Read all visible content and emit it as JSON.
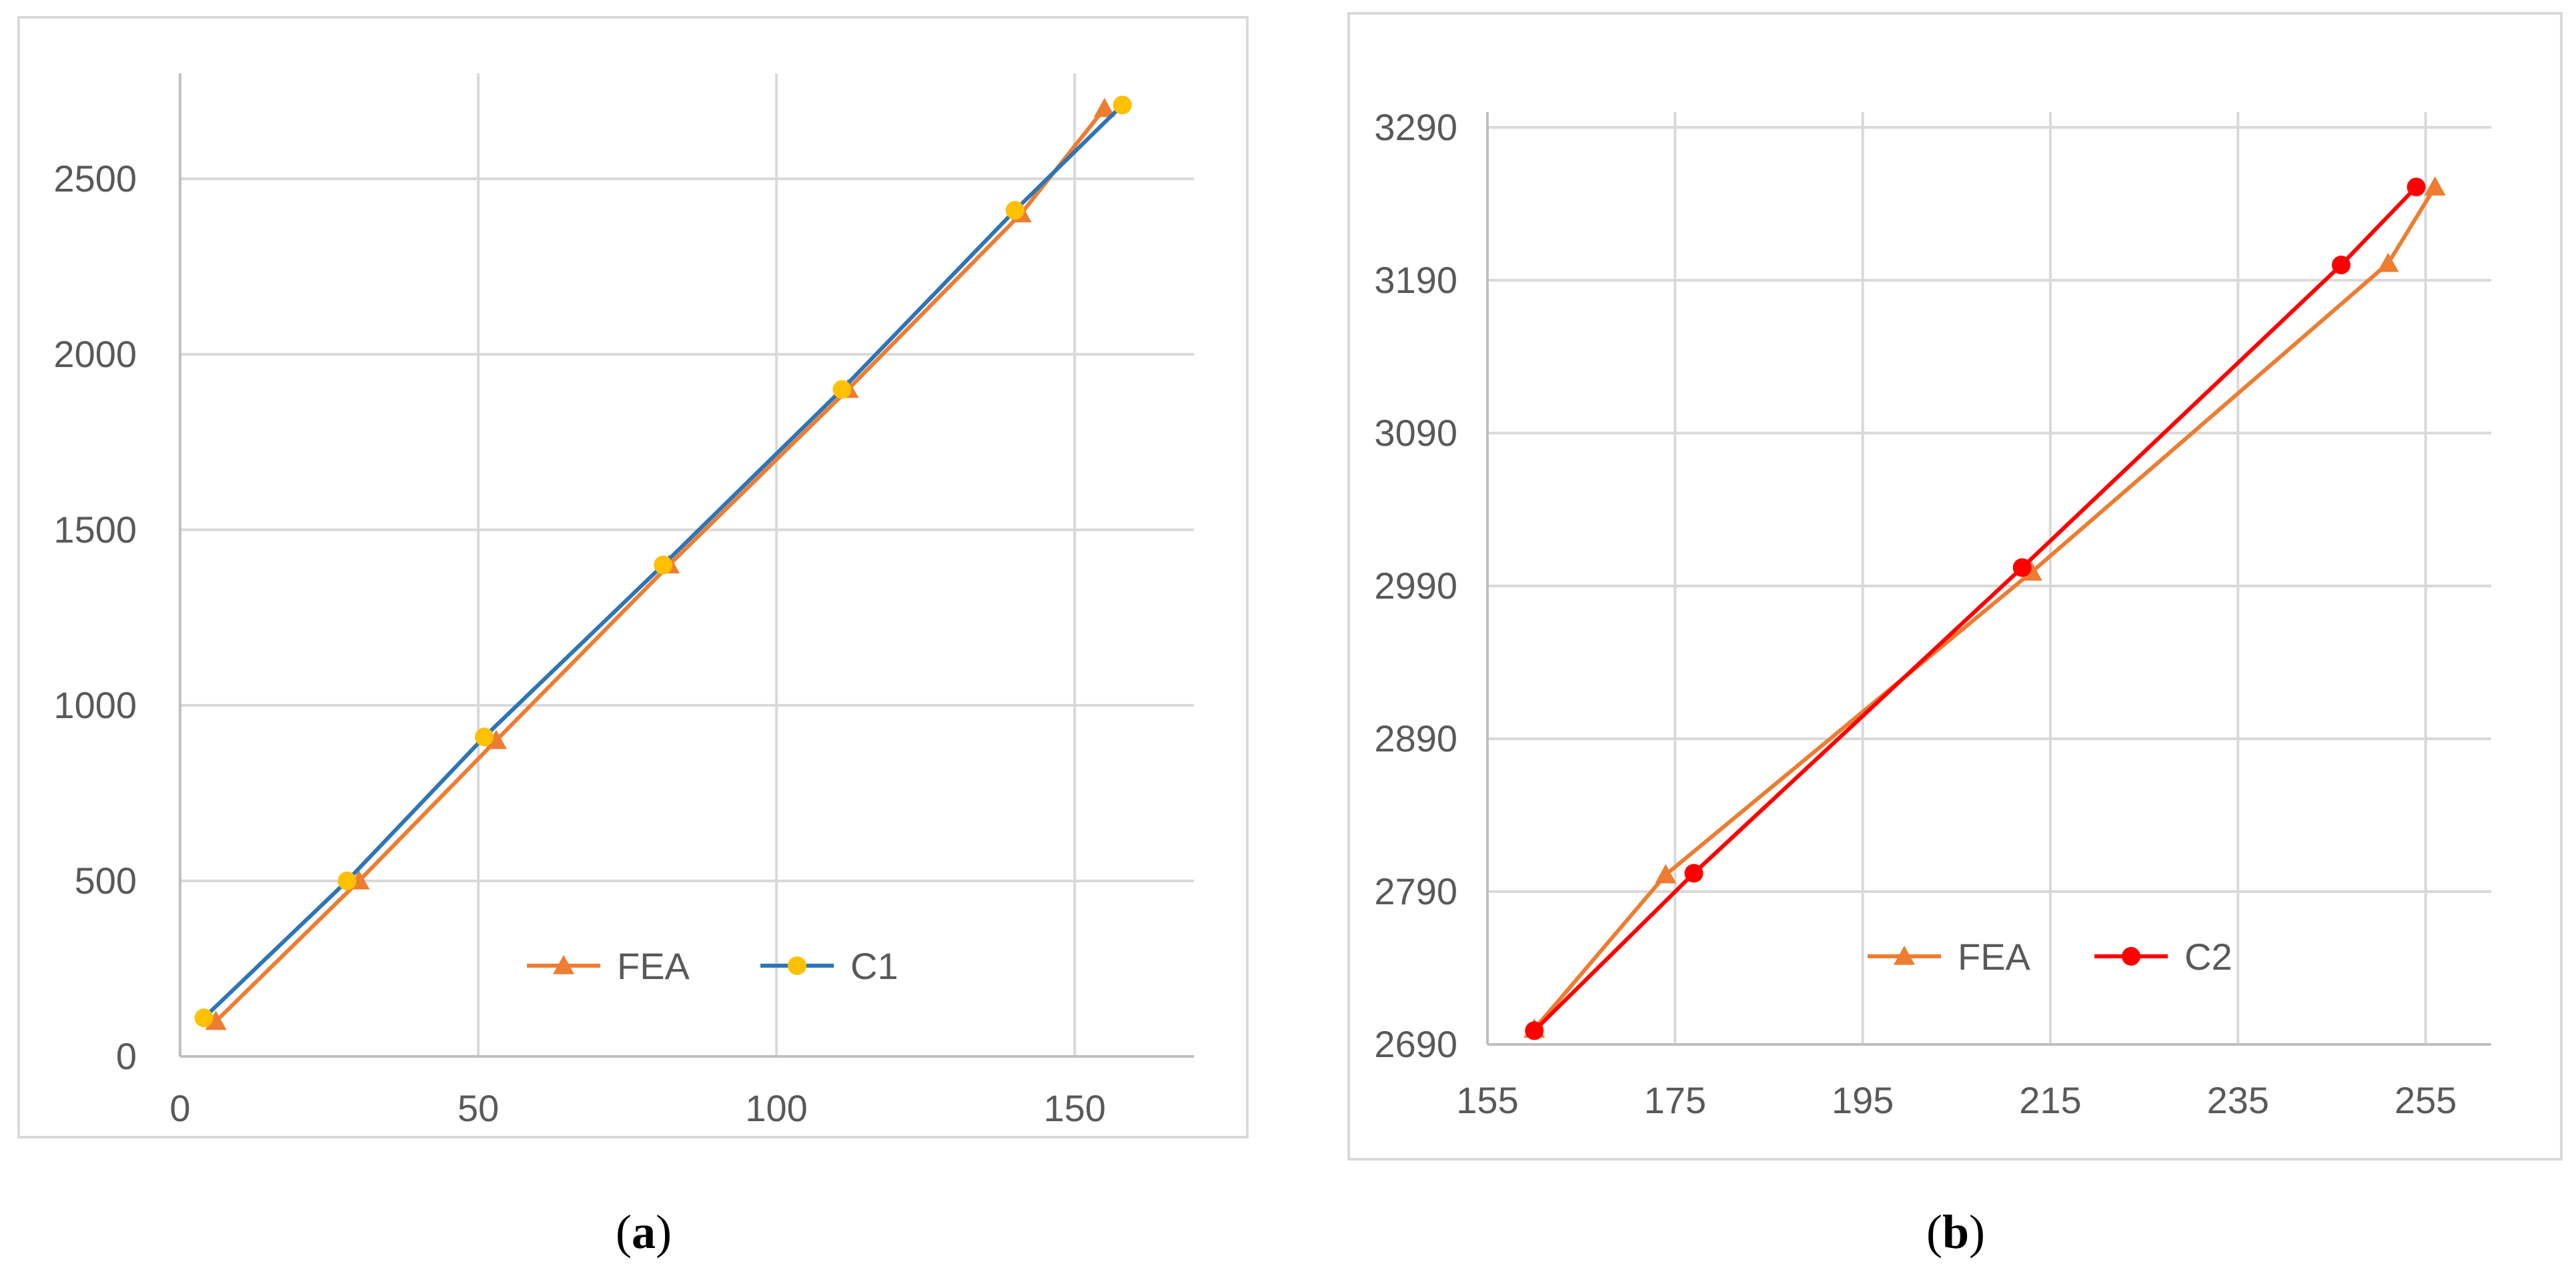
{
  "chart_data": [
    {
      "type": "line",
      "caption": "a",
      "title": "",
      "xlabel": "",
      "ylabel": "",
      "xlim": [
        0,
        170
      ],
      "ylim": [
        0,
        2800
      ],
      "x_ticks": [
        0,
        50,
        100,
        150
      ],
      "y_ticks": [
        0,
        500,
        1000,
        1500,
        2000,
        2500
      ],
      "grid": true,
      "legend_position": "bottom-center",
      "colors": {
        "FEA": "#ed7d31",
        "C1_line": "#2e75b6",
        "C1_marker": "#ffc000"
      },
      "series": [
        {
          "name": "FEA",
          "marker": "triangle",
          "x": [
            6,
            30,
            53,
            82,
            112,
            141,
            155
          ],
          "y": [
            100,
            500,
            900,
            1400,
            1900,
            2400,
            2700
          ]
        },
        {
          "name": "C1",
          "marker": "circle",
          "x": [
            4,
            28,
            51,
            81,
            111,
            140,
            158
          ],
          "y": [
            110,
            500,
            910,
            1400,
            1900,
            2410,
            2710
          ]
        }
      ]
    },
    {
      "type": "line",
      "caption": "b",
      "title": "",
      "xlabel": "",
      "ylabel": "",
      "xlim": [
        155,
        262
      ],
      "ylim": [
        2690,
        3300
      ],
      "x_ticks": [
        155,
        175,
        195,
        215,
        235,
        255
      ],
      "y_ticks": [
        2690,
        2790,
        2890,
        2990,
        3090,
        3190,
        3290
      ],
      "grid": true,
      "legend_position": "bottom-center",
      "colors": {
        "FEA": "#ed7d31",
        "C2": "#ff0000"
      },
      "series": [
        {
          "name": "FEA",
          "marker": "triangle",
          "x": [
            160,
            174,
            213,
            251,
            256
          ],
          "y": [
            2700,
            2801,
            2999,
            3201,
            3251
          ]
        },
        {
          "name": "C2",
          "marker": "circle",
          "x": [
            160,
            177,
            212,
            246,
            254
          ],
          "y": [
            2699,
            2802,
            3002,
            3200,
            3251
          ]
        }
      ]
    }
  ]
}
